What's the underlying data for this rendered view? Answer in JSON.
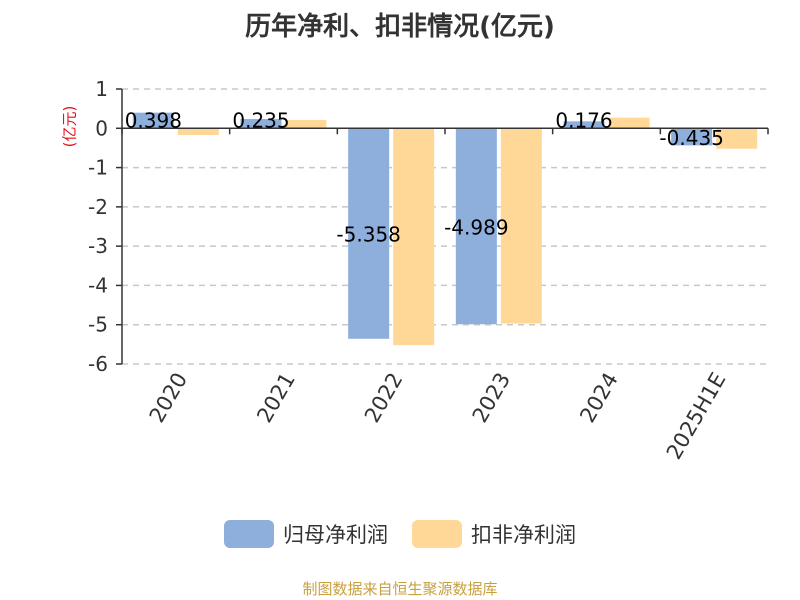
{
  "title": "历年净利、扣非情况(亿元)",
  "unit": "(亿元)",
  "footer": "制图数据来自恒生聚源数据库",
  "colors": {
    "series1": "#8eaedb",
    "series2": "#ffd898",
    "grid": "#c8c8c8",
    "axis": "#333333"
  },
  "chart_data": {
    "type": "bar",
    "title": "历年净利、扣非情况(亿元)",
    "ylabel": "(亿元)",
    "categories": [
      "2020",
      "2021",
      "2022",
      "2023",
      "2024",
      "2025H1E"
    ],
    "yticks": [
      "1",
      "0",
      "-1",
      "-2",
      "-3",
      "-4",
      "-5",
      "-6"
    ],
    "ylim": [
      -6,
      1
    ],
    "grid": true,
    "legend_position": "bottom",
    "series": [
      {
        "name": "归母净利润",
        "values": [
          0.398,
          0.235,
          -5.358,
          -4.989,
          0.176,
          -0.435
        ],
        "labels": [
          "0.398",
          "0.235",
          "-5.358",
          "-4.989",
          "0.176",
          "-0.435"
        ]
      },
      {
        "name": "扣非净利润",
        "values": [
          -0.17,
          0.21,
          -5.52,
          -4.97,
          0.27,
          -0.52
        ]
      }
    ]
  }
}
